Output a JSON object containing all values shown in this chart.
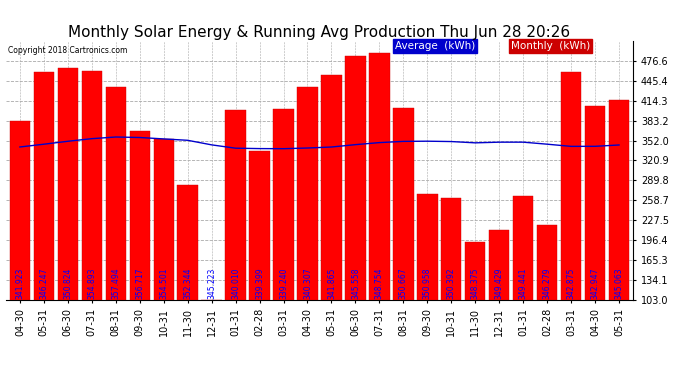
{
  "title": "Monthly Solar Energy & Running Avg Production Thu Jun 28 20:26",
  "copyright": "Copyright 2018 Cartronics.com",
  "categories": [
    "04-30",
    "05-31",
    "06-30",
    "07-31",
    "08-31",
    "09-30",
    "10-31",
    "11-30",
    "12-31",
    "01-31",
    "02-28",
    "03-31",
    "04-30",
    "05-31",
    "06-30",
    "07-31",
    "08-31",
    "09-30",
    "10-31",
    "11-30",
    "12-31",
    "01-31",
    "02-28",
    "03-31",
    "04-30",
    "05-31"
  ],
  "monthly_values": [
    383.0,
    459.0,
    466.0,
    461.0,
    436.0,
    367.0,
    354.0,
    283.0,
    103.0,
    399.0,
    336.0,
    401.0,
    435.0,
    455.0,
    484.0,
    488.0,
    403.0,
    268.0,
    262.0,
    193.0,
    213.0,
    265.0,
    220.0,
    459.0,
    406.0,
    416.0
  ],
  "running_avg": [
    341.923,
    346.247,
    350.824,
    354.893,
    357.494,
    356.717,
    354.501,
    352.344,
    345.223,
    340.01,
    339.399,
    339.24,
    340.307,
    341.865,
    345.558,
    348.754,
    350.667,
    350.958,
    350.392,
    348.375,
    349.429,
    349.441,
    346.279,
    342.875,
    342.947,
    345.063
  ],
  "bar_color": "#ff0000",
  "avg_line_color": "#0000cc",
  "bar_edge_color": "#cc0000",
  "background_color": "#ffffff",
  "plot_bg_color": "#ffffff",
  "grid_color": "#aaaaaa",
  "ylabel_right_ticks": [
    103.0,
    134.1,
    165.3,
    196.4,
    227.5,
    258.7,
    289.8,
    320.9,
    352.0,
    383.2,
    414.3,
    445.4,
    476.6
  ],
  "ylim": [
    103.0,
    507.0
  ],
  "title_fontsize": 11,
  "tick_fontsize": 7,
  "label_in_bar_fontsize": 5.5,
  "legend_fontsize": 7.5
}
